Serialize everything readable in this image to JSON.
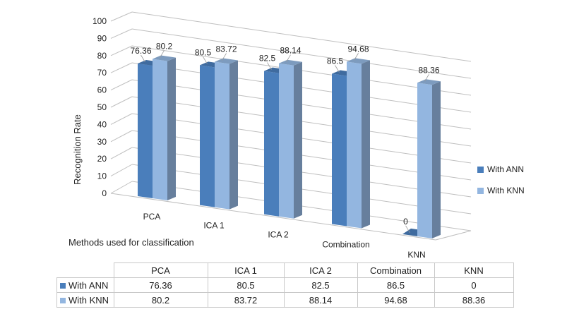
{
  "chart_data": {
    "type": "bar",
    "categories": [
      "PCA",
      "ICA 1",
      "ICA 2",
      "Combination",
      "KNN"
    ],
    "series": [
      {
        "name": "With ANN",
        "values": [
          76.36,
          80.5,
          82.5,
          86.5,
          0
        ],
        "color": "#4a7ebb"
      },
      {
        "name": "With KNN",
        "values": [
          80.2,
          83.72,
          88.14,
          94.68,
          88.36
        ],
        "color": "#93b6e0"
      }
    ],
    "ylabel": "Recognition Rate",
    "xlabel": "Methods used for classification",
    "ylim": [
      0,
      100
    ],
    "yticks": [
      0,
      10,
      20,
      30,
      40,
      50,
      60,
      70,
      80,
      90,
      100
    ],
    "grid": true,
    "legend": "right",
    "three_d": true
  },
  "table": {
    "headers": [
      "PCA",
      "ICA 1",
      "ICA 2",
      "Combination",
      "KNN"
    ],
    "rows": [
      {
        "label": "With ANN",
        "values": [
          "76.36",
          "80.5",
          "82.5",
          "86.5",
          "0"
        ]
      },
      {
        "label": "With KNN",
        "values": [
          "80.2",
          "83.72",
          "88.14",
          "94.68",
          "88.36"
        ]
      }
    ]
  }
}
